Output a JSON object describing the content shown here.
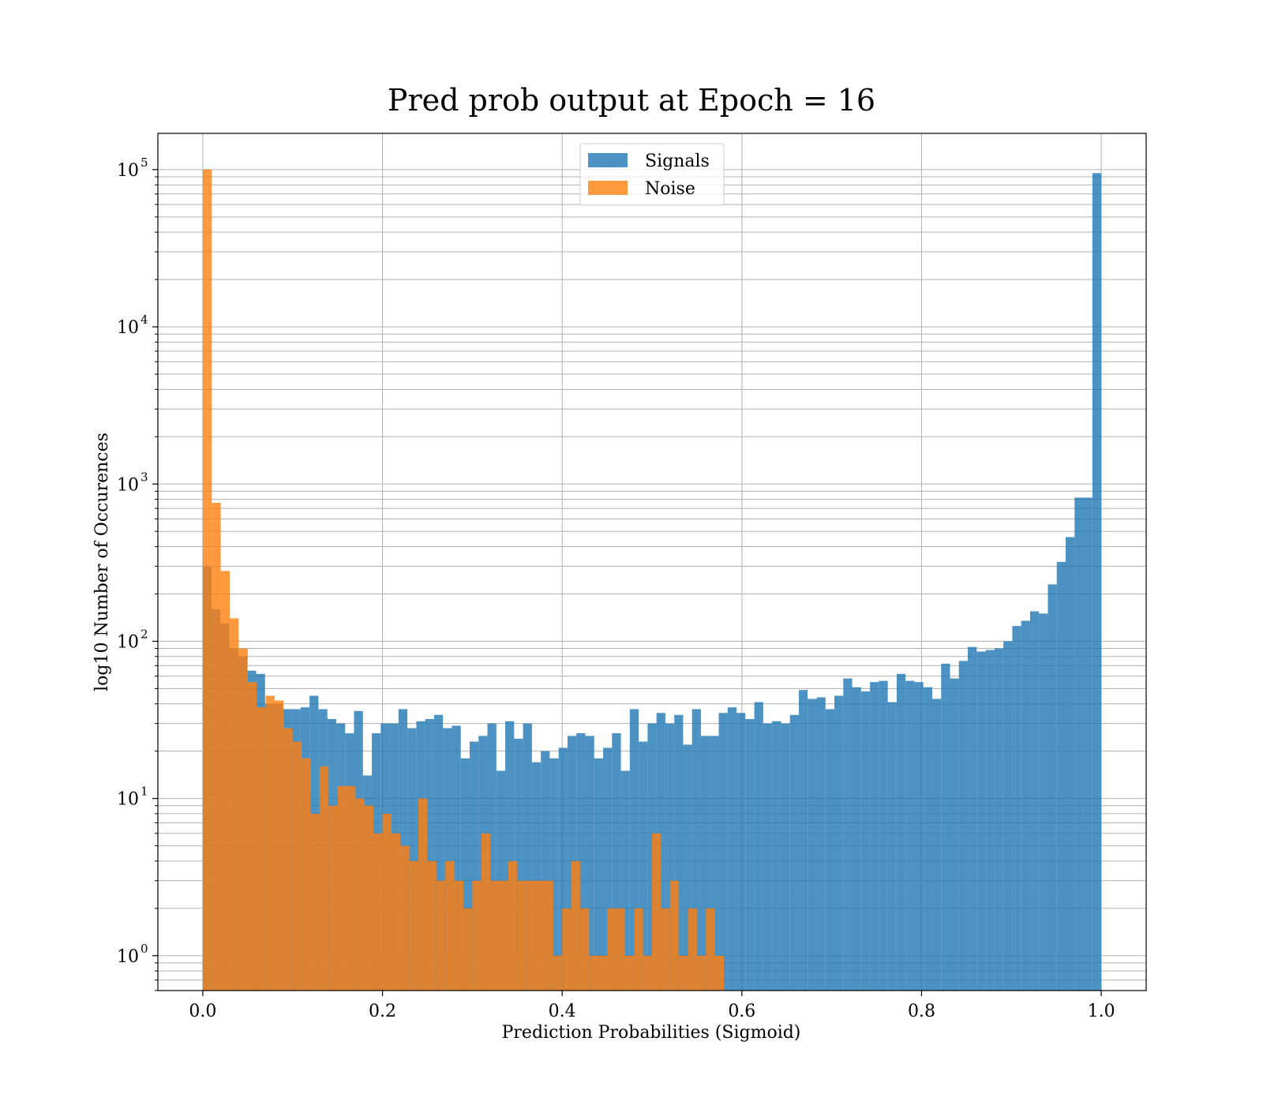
{
  "chart_data": {
    "type": "bar",
    "title": "Pred prob output at Epoch = 16",
    "xlabel": "Prediction Probabilities (Sigmoid)",
    "ylabel": "log10 Number of Occurences",
    "xlim": [
      -0.05,
      1.05
    ],
    "ylim": [
      0.6,
      170000
    ],
    "yscale": "log",
    "grid": true,
    "legend_position": "upper center",
    "x_ticks": [
      "0.0",
      "0.2",
      "0.4",
      "0.6",
      "0.8",
      "1.0"
    ],
    "y_ticks": [
      {
        "base": "10",
        "exp": "0",
        "value": 1
      },
      {
        "base": "10",
        "exp": "1",
        "value": 10
      },
      {
        "base": "10",
        "exp": "2",
        "value": 100
      },
      {
        "base": "10",
        "exp": "3",
        "value": 1000
      },
      {
        "base": "10",
        "exp": "4",
        "value": 10000
      },
      {
        "base": "10",
        "exp": "5",
        "value": 100000
      }
    ],
    "bin_edges": {
      "start": 0.0,
      "end": 1.0,
      "count": 101
    },
    "series": [
      {
        "name": "Signals",
        "color": "#1f77b4",
        "alpha": 0.8,
        "bins": {
          "start": 0.0,
          "end": 1.0,
          "count": 101
        },
        "values": [
          300,
          160,
          130,
          90,
          80,
          65,
          62,
          40,
          40,
          37,
          37,
          38,
          45,
          37,
          32,
          30,
          26,
          36,
          14,
          26,
          30,
          30,
          37,
          28,
          31,
          32,
          34,
          28,
          29,
          18,
          23,
          25,
          30,
          15,
          31,
          24,
          30,
          17,
          20,
          18,
          21,
          25,
          26,
          25,
          18,
          21,
          26,
          15,
          37,
          23,
          30,
          35,
          30,
          34,
          22,
          37,
          25,
          25,
          35,
          38,
          35,
          32,
          41,
          30,
          31,
          30,
          34,
          49,
          43,
          44,
          37,
          45,
          58,
          51,
          48,
          55,
          56,
          41,
          62,
          56,
          55,
          51,
          43,
          72,
          58,
          75,
          92,
          86,
          88,
          90,
          100,
          125,
          135,
          155,
          150,
          230,
          320,
          460,
          820,
          820,
          95000
        ]
      },
      {
        "name": "Noise",
        "color": "#ff7f0e",
        "alpha": 0.8,
        "bins": {
          "start": 0.0,
          "end": 1.0,
          "count": 100
        },
        "values": [
          100000,
          760,
          280,
          140,
          90,
          55,
          38,
          45,
          42,
          28,
          23,
          18,
          8,
          16,
          9,
          12,
          12,
          10,
          9,
          6,
          8,
          6,
          5,
          4,
          10,
          4,
          3,
          4,
          3,
          2,
          3,
          6,
          3,
          3,
          4,
          3,
          3,
          3,
          3,
          1,
          2,
          4,
          2,
          1,
          1,
          2,
          2,
          1,
          2,
          1,
          6,
          2,
          3,
          1,
          2,
          1,
          2,
          1,
          0,
          0,
          0,
          0,
          0,
          0,
          0,
          0,
          0,
          0,
          0,
          0,
          0,
          0,
          0,
          0,
          0,
          0,
          0,
          0,
          0,
          0,
          0,
          0,
          0,
          0,
          0,
          0,
          0,
          0,
          0,
          0,
          0,
          0,
          0,
          0,
          0,
          0,
          0,
          0,
          0,
          0
        ]
      }
    ]
  }
}
